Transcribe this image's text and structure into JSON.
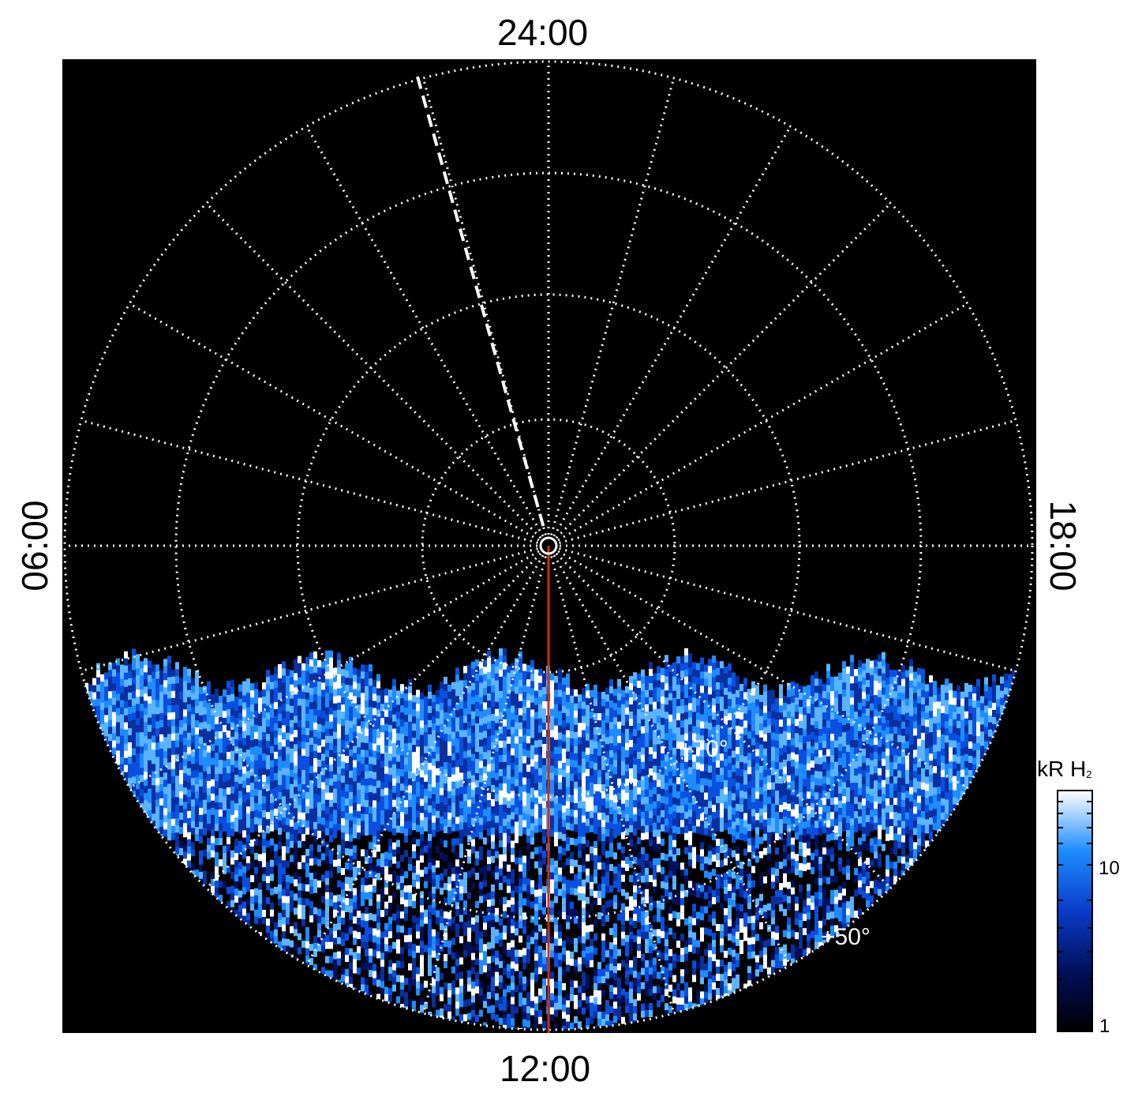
{
  "local_time_labels": {
    "top": "24:00",
    "bottom": "12:00",
    "left": "06:00",
    "right": "18:00"
  },
  "latitude_labels": {
    "inner": "+70°",
    "outer": "+50°"
  },
  "colorbar": {
    "title_main": "kR H",
    "title_sub": "2",
    "ticks": [
      "1",
      "10"
    ],
    "scale": "log",
    "colors": [
      "#000000",
      "#00105a",
      "#0a3cc8",
      "#1e8cff",
      "#ffffff"
    ]
  },
  "colors": {
    "background": "#000000",
    "grid": "#ffffff",
    "meridian_line": "#c83214",
    "dashed_line": "#ffffff"
  }
}
